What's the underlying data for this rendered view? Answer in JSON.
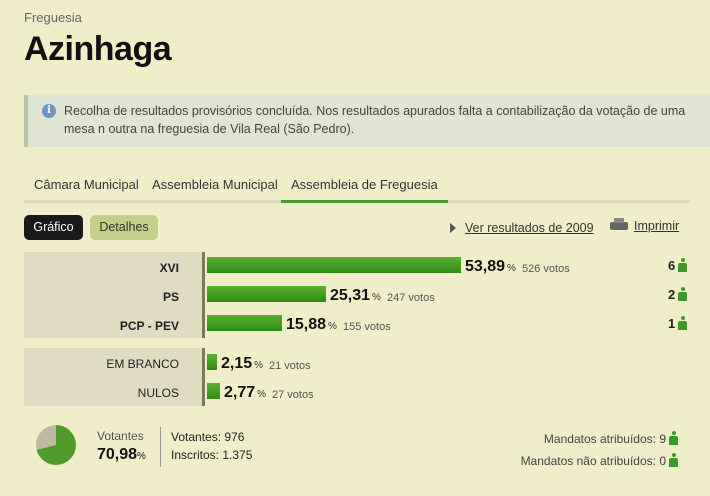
{
  "header": {
    "breadcrumb": "Freguesia",
    "title": "Azinhaga"
  },
  "notice": {
    "text": "Recolha de resultados provisórios concluída. Nos resultados apurados falta a contabilização da votação de uma mesa n outra na freguesia de Vila Real (São Pedro)."
  },
  "tabs": [
    {
      "label": "Câmara Municipal",
      "active": false
    },
    {
      "label": "Assembleia Municipal",
      "active": false
    },
    {
      "label": "Assembleia de Freguesia",
      "active": true
    }
  ],
  "toolbar": {
    "grafico_label": "Gráfico",
    "detalhes_label": "Detalhes",
    "results_2009_link": "Ver resultados de 2009",
    "print_label": "Imprimir"
  },
  "results": [
    {
      "party": "XVI",
      "percent": "53,89",
      "pct_unit": "%",
      "votes": "526 votos",
      "mandates": "6",
      "share": 53.89
    },
    {
      "party": "PS",
      "percent": "25,31",
      "pct_unit": "%",
      "votes": "247 votos",
      "mandates": "2",
      "share": 25.31
    },
    {
      "party": "PCP - PEV",
      "percent": "15,88",
      "pct_unit": "%",
      "votes": "155 votos",
      "mandates": "1",
      "share": 15.88
    }
  ],
  "other_votes": [
    {
      "label": "EM BRANCO",
      "percent": "2,15",
      "pct_unit": "%",
      "votes": "21 votos",
      "share": 2.15
    },
    {
      "label": "NULOS",
      "percent": "2,77",
      "pct_unit": "%",
      "votes": "27 votos",
      "share": 2.77
    }
  ],
  "turnout": {
    "label": "Votantes",
    "percent": "70,98",
    "pct_unit": "%",
    "share": 70.98,
    "votantes": "Votantes: 976",
    "inscritos": "Inscritos: 1.375",
    "mandatos_atribuidos": "Mandatos atribuídos: 9",
    "mandatos_nao_atribuidos": "Mandatos não atribuídos: 0"
  },
  "colors": {
    "bar_green": "#3d9a26",
    "background": "#f0eec9",
    "notice_bg": "#dfe4d3"
  },
  "icons": [
    "info-icon",
    "triangle-right-icon",
    "printer-icon",
    "person-icon",
    "pie-chart-icon"
  ]
}
